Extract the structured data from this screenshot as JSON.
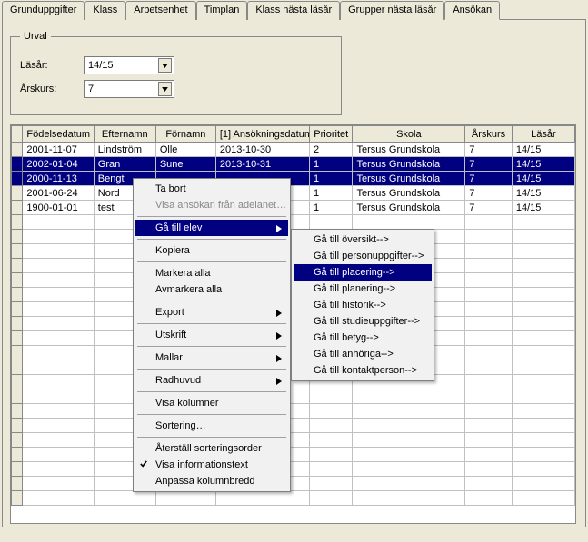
{
  "tabs": {
    "items": [
      "Grunduppgifter",
      "Klass",
      "Arbetsenhet",
      "Timplan",
      "Klass nästa läsår",
      "Grupper nästa läsår",
      "Ansökan"
    ],
    "active_index": 6
  },
  "urval": {
    "legend": "Urval",
    "lasar_label": "Läsår:",
    "lasar_value": "14/15",
    "arskurs_label": "Årskurs:",
    "arskurs_value": "7"
  },
  "grid": {
    "columns": [
      "Födelsedatum",
      "Efternamn",
      "Förnamn",
      "[1] Ansökningsdatum",
      "Prioritet",
      "Skola",
      "Årskurs",
      "Läsår"
    ],
    "rows": [
      {
        "fd": "2001-11-07",
        "en": "Lindström",
        "fn": "Olle",
        "ad": "2013-10-30",
        "pr": "2",
        "sk": "Tersus Grundskola",
        "ak": "7",
        "la": "14/15",
        "sel": false
      },
      {
        "fd": "2002-01-04",
        "en": "Gran",
        "fn": "Sune",
        "ad": "2013-10-31",
        "pr": "1",
        "sk": "Tersus Grundskola",
        "ak": "7",
        "la": "14/15",
        "sel": true
      },
      {
        "fd": "2000-11-13",
        "en": "Bengt",
        "fn": "",
        "ad": "",
        "pr": "1",
        "sk": "Tersus Grundskola",
        "ak": "7",
        "la": "14/15",
        "sel": true
      },
      {
        "fd": "2001-06-24",
        "en": "Nord",
        "fn": "",
        "ad": "",
        "pr": "1",
        "sk": "Tersus Grundskola",
        "ak": "7",
        "la": "14/15",
        "sel": false
      },
      {
        "fd": "1900-01-01",
        "en": "test",
        "fn": "",
        "ad": "",
        "pr": "1",
        "sk": "Tersus Grundskola",
        "ak": "7",
        "la": "14/15",
        "sel": false
      }
    ]
  },
  "menu1": {
    "items": [
      {
        "label": "Ta bort",
        "type": "normal"
      },
      {
        "label": "Visa ansökan från adelanet…",
        "type": "disabled"
      },
      {
        "type": "sep"
      },
      {
        "label": "Gå till elev",
        "type": "submenu",
        "highlight": true
      },
      {
        "type": "sep"
      },
      {
        "label": "Kopiera",
        "type": "normal"
      },
      {
        "type": "sep"
      },
      {
        "label": "Markera alla",
        "type": "normal"
      },
      {
        "label": "Avmarkera alla",
        "type": "normal"
      },
      {
        "type": "sep"
      },
      {
        "label": "Export",
        "type": "submenu"
      },
      {
        "type": "sep"
      },
      {
        "label": "Utskrift",
        "type": "submenu"
      },
      {
        "type": "sep"
      },
      {
        "label": "Mallar",
        "type": "submenu"
      },
      {
        "type": "sep"
      },
      {
        "label": "Radhuvud",
        "type": "submenu"
      },
      {
        "type": "sep"
      },
      {
        "label": "Visa kolumner",
        "type": "normal"
      },
      {
        "type": "sep"
      },
      {
        "label": "Sortering…",
        "type": "normal"
      },
      {
        "type": "sep"
      },
      {
        "label": "Återställ sorteringsorder",
        "type": "normal"
      },
      {
        "label": "Visa informationstext",
        "type": "checked"
      },
      {
        "label": "Anpassa kolumnbredd",
        "type": "normal"
      }
    ]
  },
  "menu2": {
    "items": [
      {
        "label": "Gå till översikt-->",
        "type": "normal"
      },
      {
        "label": "Gå till personuppgifter-->",
        "type": "normal"
      },
      {
        "label": "Gå till placering-->",
        "type": "highlight"
      },
      {
        "label": "Gå till planering-->",
        "type": "normal"
      },
      {
        "label": "Gå till historik-->",
        "type": "normal"
      },
      {
        "label": "Gå till studieuppgifter-->",
        "type": "normal"
      },
      {
        "label": "Gå till betyg-->",
        "type": "normal"
      },
      {
        "label": "Gå till anhöriga-->",
        "type": "normal"
      },
      {
        "label": "Gå till kontaktperson-->",
        "type": "normal"
      }
    ]
  },
  "colors": {
    "bg": "#ece9d8",
    "sel": "#000080",
    "white": "#ffffff",
    "border": "#888888"
  }
}
